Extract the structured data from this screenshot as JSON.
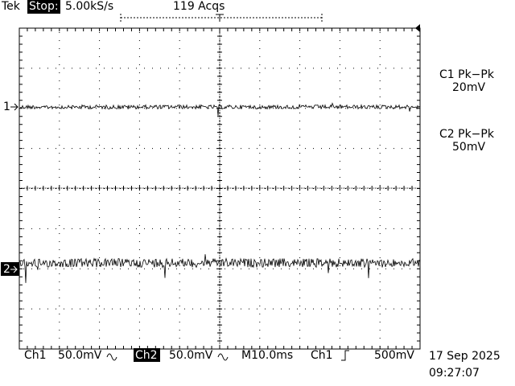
{
  "header": {
    "brand": "Tek",
    "state": "Stop:",
    "sample_rate": "5.00kS/s",
    "acquisitions": "119 Acqs"
  },
  "measurements": [
    {
      "label": "C1 Pk−Pk",
      "value": "20mV"
    },
    {
      "label": "C2 Pk−Pk",
      "value": "50mV"
    }
  ],
  "channel_markers": [
    "1",
    "2"
  ],
  "status": {
    "ch1_label": "Ch1",
    "ch1_scale": "50.0mV",
    "ch2_label": "Ch2",
    "ch2_scale": "50.0mV",
    "timebase": "M10.0ms",
    "trigger_source": "Ch1",
    "trigger_level": "500mV",
    "date": "17 Sep 2025",
    "time": "09:27:07"
  }
}
